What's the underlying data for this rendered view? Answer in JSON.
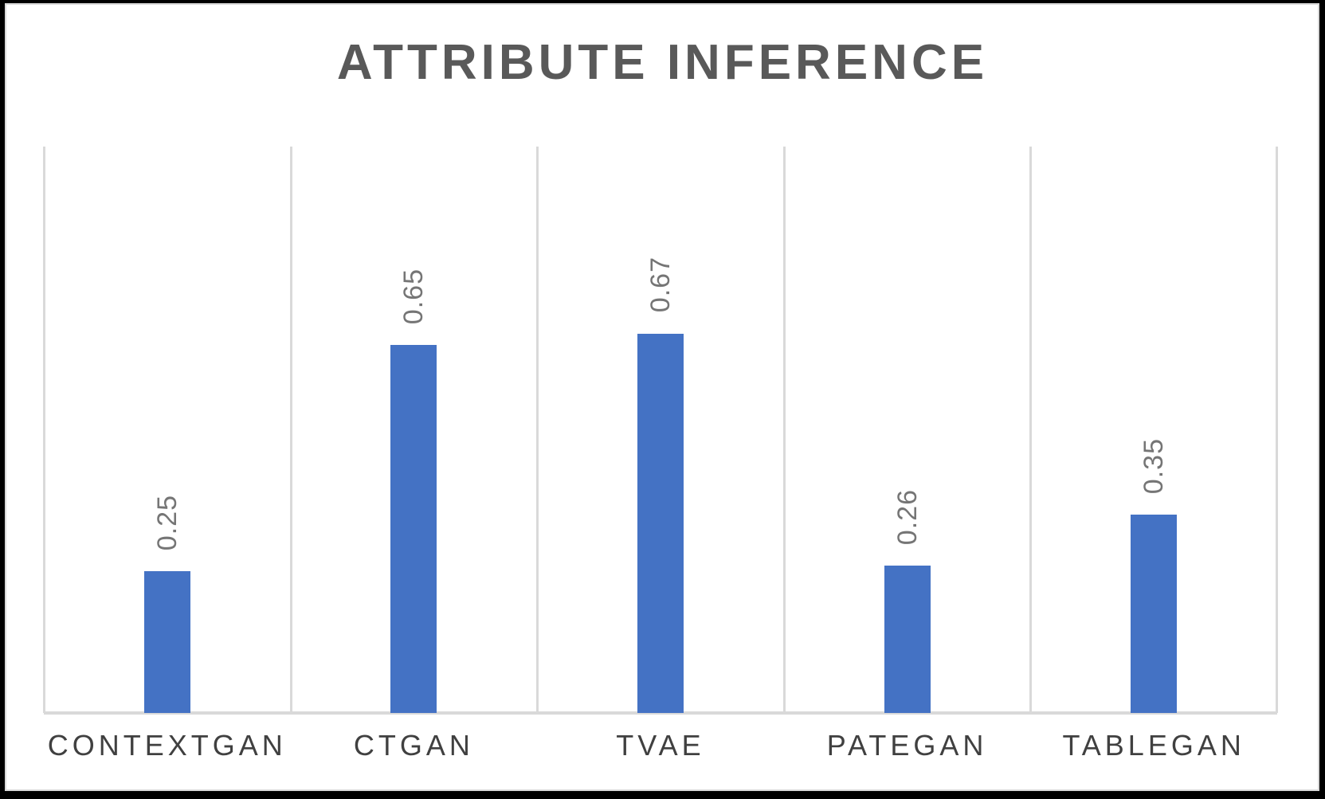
{
  "chart_data": {
    "type": "bar",
    "title": "ATTRIBUTE INFERENCE",
    "categories": [
      "CONTEXTGAN",
      "CTGAN",
      "TVAE",
      "PATEGAN",
      "TABLEGAN"
    ],
    "values": [
      0.25,
      0.65,
      0.67,
      0.26,
      0.35
    ],
    "data_labels": [
      "0.25",
      "0.65",
      "0.67",
      "0.26",
      "0.35"
    ],
    "data_label_rotation_deg": 270,
    "xlabel": "",
    "ylabel": "",
    "ylim": [
      0,
      1
    ],
    "legend": "none",
    "y_axis_tick_labels_visible": false,
    "gridlines": "vertical-category-boundaries",
    "colors": {
      "bar": "#4472C4",
      "title": "#595959",
      "category_label": "#404040",
      "value_label": "#757575",
      "gridline": "#D9D9D9",
      "axis_line": "#D9D9D9",
      "background": "#FFFFFF",
      "frame": "#000000"
    }
  }
}
